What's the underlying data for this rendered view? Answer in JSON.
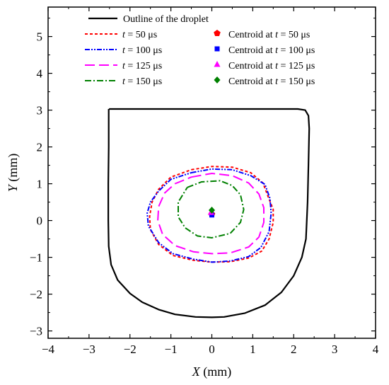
{
  "chart_data": {
    "type": "line",
    "xlabel": {
      "symbol": "X",
      "unit": " (mm)"
    },
    "ylabel": {
      "symbol": "Y",
      "unit": " (mm)"
    },
    "xlim": [
      -4,
      4
    ],
    "ylim": [
      -3.2,
      5.8
    ],
    "xticks": [
      -4,
      -3,
      -2,
      -1,
      0,
      1,
      2,
      3,
      4
    ],
    "yticks": [
      -3,
      -2,
      -1,
      0,
      1,
      2,
      3,
      4,
      5
    ],
    "x_tick_labels": [
      "−4",
      "−3",
      "−2",
      "−1",
      "0",
      "1",
      "2",
      "3",
      "4"
    ],
    "y_tick_labels": [
      "−3",
      "−2",
      "−1",
      "0",
      "1",
      "2",
      "3",
      "4",
      "5"
    ],
    "grid": false,
    "legend_position": "top",
    "outline": {
      "name": "Outline of the droplet",
      "color": "#000000",
      "style": "solid",
      "points": [
        [
          -2.51,
          3.03
        ],
        [
          2.1,
          3.03
        ],
        [
          2.28,
          3.0
        ],
        [
          2.36,
          2.85
        ],
        [
          2.38,
          2.5
        ],
        [
          2.36,
          1.5
        ],
        [
          2.34,
          0.5
        ],
        [
          2.3,
          -0.5
        ],
        [
          2.2,
          -1.0
        ],
        [
          2.0,
          -1.5
        ],
        [
          1.7,
          -1.95
        ],
        [
          1.3,
          -2.3
        ],
        [
          0.8,
          -2.52
        ],
        [
          0.3,
          -2.62
        ],
        [
          0.0,
          -2.63
        ],
        [
          -0.4,
          -2.62
        ],
        [
          -0.9,
          -2.55
        ],
        [
          -1.3,
          -2.42
        ],
        [
          -1.7,
          -2.22
        ],
        [
          -2.0,
          -1.98
        ],
        [
          -2.3,
          -1.62
        ],
        [
          -2.46,
          -1.2
        ],
        [
          -2.52,
          -0.7
        ],
        [
          -2.53,
          0.0
        ],
        [
          -2.53,
          1.0
        ],
        [
          -2.52,
          2.0
        ],
        [
          -2.52,
          3.03
        ]
      ]
    },
    "series": [
      {
        "name_prefix": "t",
        "name_suffix": " = 50 μs",
        "color": "#ff0000",
        "dash": "4,3",
        "points": [
          [
            -0.5,
            1.38
          ],
          [
            0.0,
            1.47
          ],
          [
            0.5,
            1.45
          ],
          [
            0.95,
            1.3
          ],
          [
            1.25,
            1.02
          ],
          [
            1.4,
            0.58
          ],
          [
            1.5,
            0.3
          ],
          [
            1.5,
            -0.05
          ],
          [
            1.4,
            -0.5
          ],
          [
            1.22,
            -0.83
          ],
          [
            0.9,
            -1.02
          ],
          [
            0.45,
            -1.12
          ],
          [
            0.0,
            -1.13
          ],
          [
            -0.45,
            -1.08
          ],
          [
            -0.95,
            -0.95
          ],
          [
            -1.3,
            -0.65
          ],
          [
            -1.5,
            -0.25
          ],
          [
            -1.52,
            0.1
          ],
          [
            -1.46,
            0.5
          ],
          [
            -1.3,
            0.85
          ],
          [
            -1.0,
            1.18
          ],
          [
            -0.5,
            1.38
          ]
        ]
      },
      {
        "name_prefix": "t",
        "name_suffix": " = 100 μs",
        "color": "#0000ff",
        "dash": "7,2,2,2,2,2",
        "points": [
          [
            -0.5,
            1.3
          ],
          [
            0.0,
            1.4
          ],
          [
            0.5,
            1.38
          ],
          [
            0.95,
            1.22
          ],
          [
            1.3,
            0.98
          ],
          [
            1.42,
            0.6
          ],
          [
            1.45,
            0.2
          ],
          [
            1.4,
            -0.3
          ],
          [
            1.2,
            -0.73
          ],
          [
            0.9,
            -0.98
          ],
          [
            0.45,
            -1.1
          ],
          [
            0.0,
            -1.13
          ],
          [
            -0.45,
            -1.05
          ],
          [
            -0.95,
            -0.9
          ],
          [
            -1.3,
            -0.6
          ],
          [
            -1.55,
            -0.15
          ],
          [
            -1.58,
            0.2
          ],
          [
            -1.5,
            0.5
          ],
          [
            -1.3,
            0.8
          ],
          [
            -1.0,
            1.12
          ],
          [
            -0.5,
            1.3
          ]
        ]
      },
      {
        "name_prefix": "t",
        "name_suffix": " = 125 μs",
        "color": "#ff00ff",
        "dash": "14,6",
        "points": [
          [
            -0.5,
            1.18
          ],
          [
            0.0,
            1.28
          ],
          [
            0.5,
            1.22
          ],
          [
            0.9,
            1.02
          ],
          [
            1.15,
            0.72
          ],
          [
            1.27,
            0.35
          ],
          [
            1.27,
            -0.05
          ],
          [
            1.15,
            -0.45
          ],
          [
            0.9,
            -0.72
          ],
          [
            0.45,
            -0.88
          ],
          [
            0.0,
            -0.9
          ],
          [
            -0.45,
            -0.85
          ],
          [
            -0.9,
            -0.68
          ],
          [
            -1.2,
            -0.38
          ],
          [
            -1.32,
            0.0
          ],
          [
            -1.3,
            0.38
          ],
          [
            -1.15,
            0.75
          ],
          [
            -0.9,
            1.0
          ],
          [
            -0.5,
            1.18
          ]
        ]
      },
      {
        "name_prefix": "t",
        "name_suffix": " = 150 μs",
        "color": "#008000",
        "dash": "9,3,2,3",
        "points": [
          [
            -0.6,
            0.9
          ],
          [
            -0.25,
            1.05
          ],
          [
            0.2,
            1.08
          ],
          [
            0.5,
            0.95
          ],
          [
            0.7,
            0.7
          ],
          [
            0.78,
            0.3
          ],
          [
            0.7,
            -0.05
          ],
          [
            0.45,
            -0.35
          ],
          [
            0.0,
            -0.47
          ],
          [
            -0.35,
            -0.42
          ],
          [
            -0.65,
            -0.2
          ],
          [
            -0.82,
            0.1
          ],
          [
            -0.82,
            0.5
          ],
          [
            -0.6,
            0.9
          ]
        ]
      }
    ],
    "centroids": [
      {
        "name_prefix": "Centroid at ",
        "t": "t",
        "name_suffix": " = 50 μs",
        "marker": "pentagon",
        "color": "#ff0000",
        "x": 0.0,
        "y": 0.17
      },
      {
        "name_prefix": "Centroid at ",
        "t": "t",
        "name_suffix": " = 100 μs",
        "marker": "square",
        "color": "#0000ff",
        "x": 0.0,
        "y": 0.15
      },
      {
        "name_prefix": "Centroid at ",
        "t": "t",
        "name_suffix": " = 125 μs",
        "marker": "triangle",
        "color": "#ff00ff",
        "x": -0.02,
        "y": 0.22
      },
      {
        "name_prefix": "Centroid at ",
        "t": "t",
        "name_suffix": " = 150 μs",
        "marker": "diamond",
        "color": "#008000",
        "x": 0.0,
        "y": 0.28
      }
    ]
  }
}
